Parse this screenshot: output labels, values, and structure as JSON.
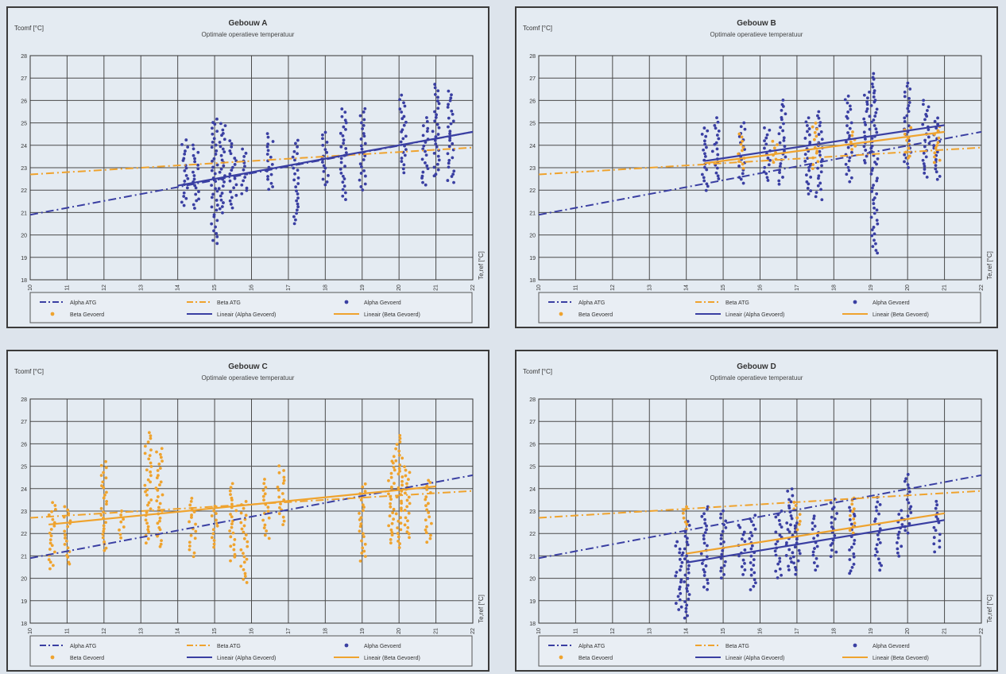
{
  "colors": {
    "blue": "#3a3fa2",
    "orange": "#efa32e",
    "grid": "#4a4a4a",
    "background": "#e4ebf2"
  },
  "chart_data": [
    {
      "type": "scatter",
      "title": "Gebouw A",
      "subtitle": "Optimale operatieve temperatuur",
      "ylabel": "Tcomf [°C]",
      "xlabel": "Te,ref [°C]",
      "xlim": [
        10,
        22
      ],
      "ylim": [
        18,
        28
      ],
      "xticks": [
        10,
        11,
        12,
        13,
        14,
        15,
        16,
        17,
        18,
        19,
        20,
        21,
        22
      ],
      "yticks": [
        18,
        19,
        20,
        21,
        22,
        23,
        24,
        25,
        26,
        27,
        28
      ],
      "grid": true,
      "legend_position": "bottom",
      "series": [
        {
          "name": "Alpha ATG",
          "kind": "line",
          "style": "dashdot",
          "color": "#3a3fa2",
          "points": [
            [
              10,
              20.9
            ],
            [
              22,
              24.6
            ]
          ]
        },
        {
          "name": "Beta ATG",
          "kind": "line",
          "style": "dashdot",
          "color": "#efa32e",
          "points": [
            [
              10,
              22.7
            ],
            [
              22,
              23.9
            ]
          ]
        },
        {
          "name": "Alpha Gevoerd",
          "kind": "scatter",
          "color": "#3a3fa2",
          "clusters": [
            [
              14.2,
              21.3,
              24.2
            ],
            [
              14.5,
              21.2,
              24.0
            ],
            [
              15.0,
              19.6,
              25.2
            ],
            [
              15.2,
              21.0,
              25.0
            ],
            [
              15.5,
              21.2,
              24.2
            ],
            [
              15.8,
              21.8,
              23.8
            ],
            [
              16.5,
              22.0,
              24.5
            ],
            [
              17.2,
              20.5,
              24.2
            ],
            [
              18.0,
              22.2,
              24.6
            ],
            [
              18.5,
              21.6,
              25.6
            ],
            [
              19.0,
              22.0,
              25.6
            ],
            [
              20.1,
              22.8,
              26.2
            ],
            [
              20.7,
              22.2,
              25.2
            ],
            [
              21.0,
              22.6,
              26.7
            ],
            [
              21.4,
              22.3,
              26.4
            ]
          ]
        },
        {
          "name": "Beta Gevoerd",
          "kind": "scatter",
          "color": "#efa32e",
          "clusters": []
        },
        {
          "name": "Lineair (Alpha Gevoerd)",
          "kind": "line",
          "style": "solid",
          "color": "#3a3fa2",
          "points": [
            [
              14.0,
              22.2
            ],
            [
              22.0,
              24.6
            ]
          ]
        },
        {
          "name": "Lineair (Beta Gevoerd)",
          "kind": "line",
          "style": "solid",
          "color": "#efa32e",
          "points": []
        }
      ]
    },
    {
      "type": "scatter",
      "title": "Gebouw B",
      "subtitle": "Optimale operatieve temperatuur",
      "ylabel": "Tcomf [°C]",
      "xlabel": "Te,ref [°C]",
      "xlim": [
        10,
        22
      ],
      "ylim": [
        18,
        28
      ],
      "xticks": [
        10,
        11,
        12,
        13,
        14,
        15,
        16,
        17,
        18,
        19,
        20,
        21,
        22
      ],
      "yticks": [
        18,
        19,
        20,
        21,
        22,
        23,
        24,
        25,
        26,
        27,
        28
      ],
      "grid": true,
      "legend_position": "bottom",
      "series": [
        {
          "name": "Alpha ATG",
          "kind": "line",
          "style": "dashdot",
          "color": "#3a3fa2",
          "points": [
            [
              10,
              20.9
            ],
            [
              22,
              24.6
            ]
          ]
        },
        {
          "name": "Beta ATG",
          "kind": "line",
          "style": "dashdot",
          "color": "#efa32e",
          "points": [
            [
              10,
              22.7
            ],
            [
              22,
              23.9
            ]
          ]
        },
        {
          "name": "Alpha Gevoerd",
          "kind": "scatter",
          "color": "#3a3fa2",
          "clusters": [
            [
              14.5,
              22.0,
              24.8
            ],
            [
              14.8,
              22.5,
              25.2
            ],
            [
              15.5,
              22.3,
              25.0
            ],
            [
              16.2,
              22.4,
              24.8
            ],
            [
              16.6,
              22.3,
              26.0
            ],
            [
              17.3,
              21.8,
              25.2
            ],
            [
              17.6,
              21.6,
              25.5
            ],
            [
              18.4,
              22.4,
              26.2
            ],
            [
              18.9,
              23.2,
              26.4
            ],
            [
              19.1,
              19.2,
              27.2
            ],
            [
              20.0,
              23.0,
              26.8
            ],
            [
              20.5,
              22.6,
              26.0
            ],
            [
              20.8,
              22.5,
              25.2
            ]
          ]
        },
        {
          "name": "Beta Gevoerd",
          "kind": "scatter",
          "color": "#efa32e",
          "clusters": [
            [
              15.5,
              23.0,
              24.5
            ],
            [
              16.4,
              23.2,
              24.2
            ],
            [
              17.5,
              23.0,
              25.0
            ],
            [
              18.5,
              23.8,
              24.6
            ],
            [
              20.0,
              23.4,
              24.8
            ],
            [
              20.8,
              23.2,
              24.8
            ]
          ]
        },
        {
          "name": "Lineair (Alpha Gevoerd)",
          "kind": "line",
          "style": "solid",
          "color": "#3a3fa2",
          "points": [
            [
              14.5,
              23.3
            ],
            [
              21.0,
              24.9
            ]
          ]
        },
        {
          "name": "Lineair (Beta Gevoerd)",
          "kind": "line",
          "style": "solid",
          "color": "#efa32e",
          "points": [
            [
              14.5,
              23.2
            ],
            [
              21.0,
              24.6
            ]
          ]
        }
      ]
    },
    {
      "type": "scatter",
      "title": "Gebouw C",
      "subtitle": "Optimale operatieve temperatuur",
      "ylabel": "Tcomf [°C]",
      "xlabel": "Te,ref [°C]",
      "xlim": [
        10,
        22
      ],
      "ylim": [
        18,
        28
      ],
      "xticks": [
        10,
        11,
        12,
        13,
        14,
        15,
        16,
        17,
        18,
        19,
        20,
        21,
        22
      ],
      "yticks": [
        18,
        19,
        20,
        21,
        22,
        23,
        24,
        25,
        26,
        27,
        28
      ],
      "grid": true,
      "legend_position": "bottom",
      "series": [
        {
          "name": "Alpha ATG",
          "kind": "line",
          "style": "dashdot",
          "color": "#3a3fa2",
          "points": [
            [
              10,
              20.9
            ],
            [
              22,
              24.6
            ]
          ]
        },
        {
          "name": "Beta ATG",
          "kind": "line",
          "style": "dashdot",
          "color": "#efa32e",
          "points": [
            [
              10,
              22.7
            ],
            [
              22,
              23.9
            ]
          ]
        },
        {
          "name": "Alpha Gevoerd",
          "kind": "scatter",
          "color": "#3a3fa2",
          "clusters": []
        },
        {
          "name": "Beta Gevoerd",
          "kind": "scatter",
          "color": "#efa32e",
          "clusters": [
            [
              10.6,
              20.4,
              23.4
            ],
            [
              11.0,
              20.6,
              23.2
            ],
            [
              12.0,
              21.2,
              25.2
            ],
            [
              12.5,
              21.8,
              23.0
            ],
            [
              13.2,
              21.6,
              26.5
            ],
            [
              13.5,
              21.4,
              25.8
            ],
            [
              14.4,
              21.0,
              23.6
            ],
            [
              15.0,
              21.4,
              23.2
            ],
            [
              15.5,
              20.8,
              24.2
            ],
            [
              15.8,
              19.8,
              23.4
            ],
            [
              16.4,
              21.8,
              24.4
            ],
            [
              16.8,
              22.4,
              25.0
            ],
            [
              19.0,
              20.8,
              24.2
            ],
            [
              19.8,
              21.6,
              25.4
            ],
            [
              20.0,
              21.4,
              26.4
            ],
            [
              20.2,
              21.8,
              25.0
            ],
            [
              20.8,
              21.6,
              24.4
            ]
          ]
        },
        {
          "name": "Lineair (Alpha Gevoerd)",
          "kind": "line",
          "style": "solid",
          "color": "#3a3fa2",
          "points": []
        },
        {
          "name": "Lineair (Beta Gevoerd)",
          "kind": "line",
          "style": "solid",
          "color": "#efa32e",
          "points": [
            [
              10.5,
              22.4
            ],
            [
              21.0,
              24.1
            ]
          ]
        }
      ]
    },
    {
      "type": "scatter",
      "title": "Gebouw D",
      "subtitle": "Optimale operatieve temperatuur",
      "ylabel": "Tcomf [°C]",
      "xlabel": "Te,ref [°C]",
      "xlim": [
        10,
        22
      ],
      "ylim": [
        18,
        28
      ],
      "xticks": [
        10,
        11,
        12,
        13,
        14,
        15,
        16,
        17,
        18,
        19,
        20,
        21,
        22
      ],
      "yticks": [
        18,
        19,
        20,
        21,
        22,
        23,
        24,
        25,
        26,
        27,
        28
      ],
      "grid": true,
      "legend_position": "bottom",
      "series": [
        {
          "name": "Alpha ATG",
          "kind": "line",
          "style": "dashdot",
          "color": "#3a3fa2",
          "points": [
            [
              10,
              20.9
            ],
            [
              22,
              24.6
            ]
          ]
        },
        {
          "name": "Beta ATG",
          "kind": "line",
          "style": "dashdot",
          "color": "#efa32e",
          "points": [
            [
              10,
              22.7
            ],
            [
              22,
              23.9
            ]
          ]
        },
        {
          "name": "Alpha Gevoerd",
          "kind": "scatter",
          "color": "#3a3fa2",
          "clusters": [
            [
              13.8,
              18.6,
              21.6
            ],
            [
              14.0,
              18.2,
              22.5
            ],
            [
              14.5,
              19.5,
              23.2
            ],
            [
              15.0,
              20.0,
              23.0
            ],
            [
              15.5,
              20.2,
              22.4
            ],
            [
              15.8,
              19.5,
              22.8
            ],
            [
              16.5,
              20.0,
              23.0
            ],
            [
              16.8,
              20.4,
              24.0
            ],
            [
              17.0,
              20.2,
              22.5
            ],
            [
              17.5,
              20.4,
              22.8
            ],
            [
              18.0,
              21.0,
              23.5
            ],
            [
              18.5,
              20.2,
              23.2
            ],
            [
              19.2,
              20.4,
              23.6
            ],
            [
              19.8,
              21.0,
              23.0
            ],
            [
              20.0,
              22.0,
              24.6
            ],
            [
              20.8,
              21.2,
              23.4
            ]
          ]
        },
        {
          "name": "Beta Gevoerd",
          "kind": "scatter",
          "color": "#efa32e",
          "clusters": [
            [
              14.0,
              22.2,
              23.2
            ],
            [
              17.0,
              22.2,
              23.4
            ],
            [
              18.5,
              22.0,
              23.6
            ]
          ]
        },
        {
          "name": "Lineair (Alpha Gevoerd)",
          "kind": "line",
          "style": "solid",
          "color": "#3a3fa2",
          "points": [
            [
              14.0,
              20.7
            ],
            [
              21.0,
              22.6
            ]
          ]
        },
        {
          "name": "Lineair (Beta Gevoerd)",
          "kind": "line",
          "style": "solid",
          "color": "#efa32e",
          "points": [
            [
              14.0,
              21.1
            ],
            [
              21.0,
              22.9
            ]
          ]
        }
      ]
    }
  ]
}
